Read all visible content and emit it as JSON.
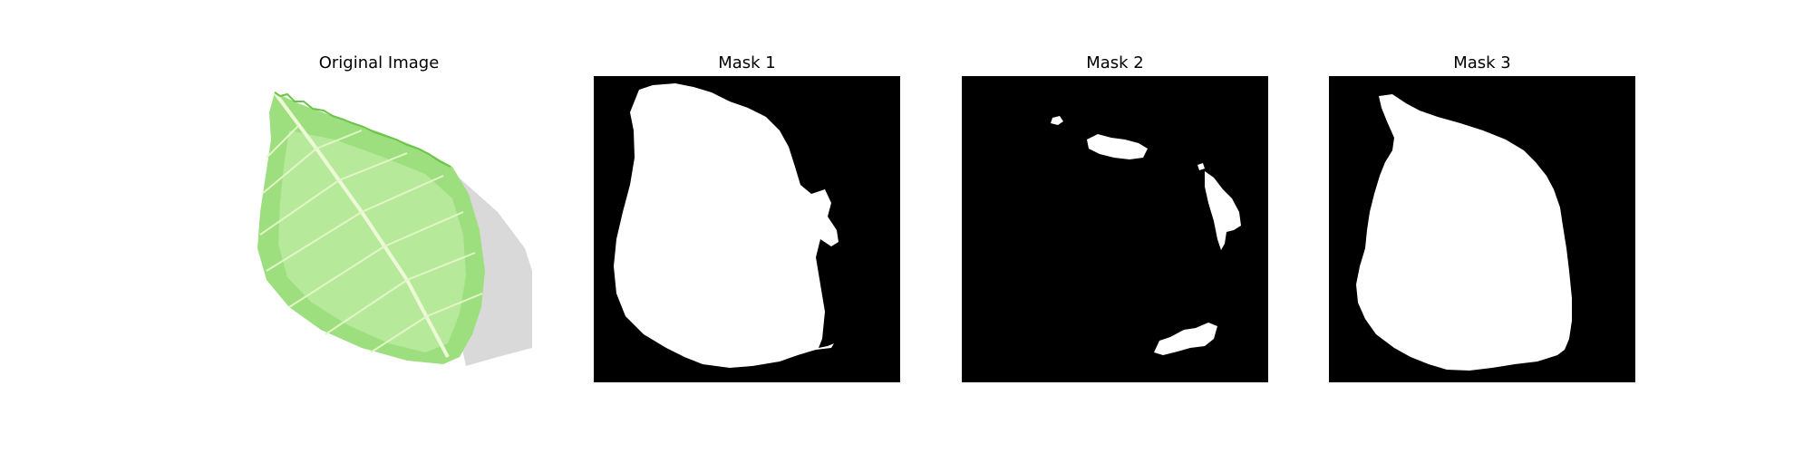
{
  "panels": [
    {
      "title": "Original Image"
    },
    {
      "title": "Mask 1"
    },
    {
      "title": "Mask 2"
    },
    {
      "title": "Mask 3"
    }
  ],
  "colors": {
    "background": "#ffffff",
    "mask_background": "#000000",
    "mask_foreground": "#ffffff",
    "leaf_light": "#a9e68a",
    "leaf_mid": "#7fd35f",
    "leaf_vein": "#e9f7c9",
    "shadow": "#d6d6d6"
  }
}
